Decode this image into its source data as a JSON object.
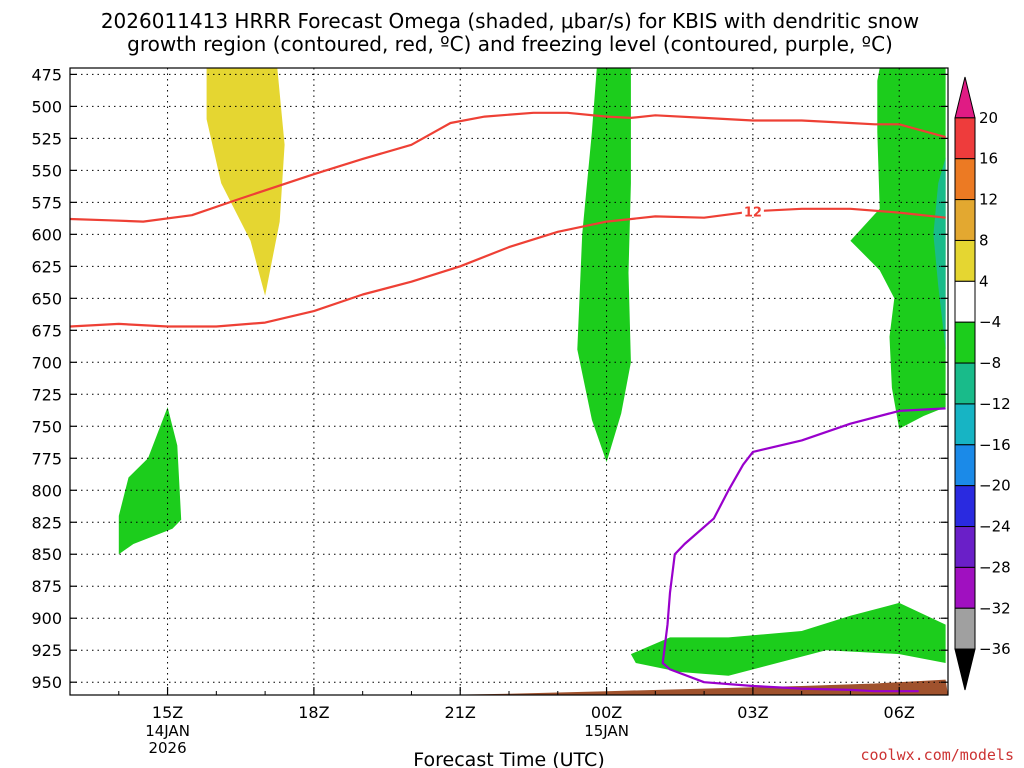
{
  "title": {
    "line1": "2026011413 HRRR Forecast Omega (shaded, μbar/s) for KBIS with dendritic snow",
    "line2": "growth region (contoured, red, ºC) and freezing level (contoured, purple, ºC)"
  },
  "credit": "coolwx.com/models",
  "colors": {
    "dgz_contour": "#ee4035",
    "freezing_contour": "#9900cc",
    "ground": "#a0522d",
    "credit": "#cc3333"
  },
  "chart_data": {
    "type": "time-height cross section",
    "xlabel": "Forecast Time (UTC)",
    "ylabel": "",
    "x_units": "forecast hours from 2026-01-14 13Z",
    "xlim": [
      0,
      18
    ],
    "ylim": [
      960,
      470
    ],
    "y_scale": "pressure (hPa), reversed",
    "grid": true,
    "x_ticks": [
      {
        "x": 2,
        "label": "15Z",
        "sub1": "14JAN",
        "sub2": "2026"
      },
      {
        "x": 5,
        "label": "18Z",
        "sub1": "",
        "sub2": ""
      },
      {
        "x": 8,
        "label": "21Z",
        "sub1": "",
        "sub2": ""
      },
      {
        "x": 11,
        "label": "00Z",
        "sub1": "15JAN",
        "sub2": ""
      },
      {
        "x": 14,
        "label": "03Z",
        "sub1": "",
        "sub2": ""
      },
      {
        "x": 17,
        "label": "06Z",
        "sub1": "",
        "sub2": ""
      }
    ],
    "y_ticks": [
      {
        "p": 475,
        "label": "475"
      },
      {
        "p": 500,
        "label": "500"
      },
      {
        "p": 525,
        "label": "525"
      },
      {
        "p": 550,
        "label": "550"
      },
      {
        "p": 575,
        "label": "575"
      },
      {
        "p": 600,
        "label": "600"
      },
      {
        "p": 625,
        "label": "625"
      },
      {
        "p": 650,
        "label": "650"
      },
      {
        "p": 675,
        "label": "675"
      },
      {
        "p": 700,
        "label": "700"
      },
      {
        "p": 725,
        "label": "725"
      },
      {
        "p": 750,
        "label": "750"
      },
      {
        "p": 775,
        "label": "775"
      },
      {
        "p": 800,
        "label": "800"
      },
      {
        "p": 825,
        "label": "825"
      },
      {
        "p": 850,
        "label": "850"
      },
      {
        "p": 875,
        "label": "875"
      },
      {
        "p": 900,
        "label": "900"
      },
      {
        "p": 925,
        "label": "925"
      },
      {
        "p": 950,
        "label": "950"
      }
    ],
    "colorbar": {
      "name": "Omega (μbar/s)",
      "bands": [
        {
          "from": 20,
          "to": null,
          "color": "#e01b84"
        },
        {
          "from": 16,
          "to": 20,
          "color": "#ee3c3c"
        },
        {
          "from": 12,
          "to": 16,
          "color": "#ec7a23"
        },
        {
          "from": 8,
          "to": 12,
          "color": "#e3a830"
        },
        {
          "from": 4,
          "to": 8,
          "color": "#e5d631"
        },
        {
          "from": -4,
          "to": 4,
          "color": "#ffffff"
        },
        {
          "from": -8,
          "to": -4,
          "color": "#1ccd1c"
        },
        {
          "from": -12,
          "to": -8,
          "color": "#19bb8a"
        },
        {
          "from": -16,
          "to": -12,
          "color": "#17b4c4"
        },
        {
          "from": -20,
          "to": -16,
          "color": "#1b8ae8"
        },
        {
          "from": -24,
          "to": -20,
          "color": "#2a2ae0"
        },
        {
          "from": -28,
          "to": -24,
          "color": "#6a1fc8"
        },
        {
          "from": -32,
          "to": -28,
          "color": "#a010c0"
        },
        {
          "from": -36,
          "to": -32,
          "color": "#a0a0a0"
        },
        {
          "from": null,
          "to": -36,
          "color": "#000000"
        }
      ],
      "tick_labels": [
        "20",
        "16",
        "12",
        "8",
        "4",
        "−4",
        "−8",
        "−12",
        "−16",
        "−20",
        "−24",
        "−28",
        "−32",
        "−36"
      ]
    },
    "shaded_regions": [
      {
        "name": "upward-motion-15z",
        "level": "-4 to -8",
        "color": "#1ccd1c",
        "points": [
          [
            1.0,
            850
          ],
          [
            1.3,
            842
          ],
          [
            2.1,
            830
          ],
          [
            2.28,
            823
          ],
          [
            2.2,
            765
          ],
          [
            2.0,
            735
          ],
          [
            1.6,
            775
          ],
          [
            1.2,
            790
          ],
          [
            1.0,
            820
          ]
        ]
      },
      {
        "name": "sinking-motion-17z",
        "level": "4 to 8",
        "color": "#e5d631",
        "points": [
          [
            2.8,
            470
          ],
          [
            4.25,
            470
          ],
          [
            4.4,
            530
          ],
          [
            4.3,
            590
          ],
          [
            4.0,
            648
          ],
          [
            3.7,
            605
          ],
          [
            3.1,
            560
          ],
          [
            2.8,
            510
          ]
        ]
      },
      {
        "name": "upward-motion-00z",
        "level": "-4 to -8",
        "color": "#1ccd1c",
        "points": [
          [
            10.8,
            470
          ],
          [
            11.5,
            470
          ],
          [
            11.5,
            560
          ],
          [
            11.45,
            630
          ],
          [
            11.5,
            700
          ],
          [
            11.3,
            740
          ],
          [
            11.0,
            778
          ],
          [
            10.7,
            745
          ],
          [
            10.4,
            690
          ],
          [
            10.5,
            600
          ],
          [
            10.7,
            520
          ]
        ]
      },
      {
        "name": "upward-motion-06z",
        "level": "-4 to -8",
        "color": "#1ccd1c",
        "points": [
          [
            16.6,
            470
          ],
          [
            17.95,
            470
          ],
          [
            17.95,
            735
          ],
          [
            17.5,
            742
          ],
          [
            17.0,
            752
          ],
          [
            16.85,
            720
          ],
          [
            16.8,
            680
          ],
          [
            16.9,
            650
          ],
          [
            16.6,
            628
          ],
          [
            16.0,
            605
          ],
          [
            16.6,
            580
          ],
          [
            16.55,
            520
          ],
          [
            16.55,
            480
          ]
        ]
      },
      {
        "name": "stronger-upward-06z",
        "level": "-8 to -12",
        "color": "#19bb8a",
        "points": [
          [
            17.95,
            540
          ],
          [
            17.8,
            560
          ],
          [
            17.7,
            600
          ],
          [
            17.8,
            640
          ],
          [
            17.95,
            690
          ]
        ]
      },
      {
        "name": "low-level-upward-band",
        "level": "-4 to -8",
        "color": "#1ccd1c",
        "points": [
          [
            11.5,
            928
          ],
          [
            12.3,
            915
          ],
          [
            13.5,
            915
          ],
          [
            15.0,
            910
          ],
          [
            16.0,
            898
          ],
          [
            17.0,
            888
          ],
          [
            17.95,
            905
          ],
          [
            17.95,
            935
          ],
          [
            17.0,
            928
          ],
          [
            15.5,
            925
          ],
          [
            14.5,
            935
          ],
          [
            13.5,
            945
          ],
          [
            12.5,
            942
          ],
          [
            11.6,
            935
          ]
        ]
      }
    ],
    "contours": [
      {
        "name": "dgz-upper",
        "group": "dendritic snow growth region (red)",
        "label": "",
        "color": "#ee4035",
        "points": [
          [
            0,
            588
          ],
          [
            0.8,
            589
          ],
          [
            1.5,
            590
          ],
          [
            2.5,
            585
          ],
          [
            3.5,
            572
          ],
          [
            5.0,
            553
          ],
          [
            6.0,
            541
          ],
          [
            7.0,
            530
          ],
          [
            7.8,
            513
          ],
          [
            8.5,
            508
          ],
          [
            9.5,
            505
          ],
          [
            10.2,
            505
          ],
          [
            11.0,
            508
          ],
          [
            11.5,
            509
          ],
          [
            12.0,
            507
          ],
          [
            13.0,
            509
          ],
          [
            14.0,
            511
          ],
          [
            15.0,
            511
          ],
          [
            16.0,
            513
          ],
          [
            16.5,
            514
          ],
          [
            17.0,
            514
          ],
          [
            17.95,
            524
          ]
        ]
      },
      {
        "name": "dgz-lower",
        "group": "dendritic snow growth region (red)",
        "label": "12",
        "color": "#ee4035",
        "points": [
          [
            0,
            672
          ],
          [
            1.0,
            670
          ],
          [
            2.0,
            672
          ],
          [
            3.0,
            672
          ],
          [
            4.0,
            669
          ],
          [
            5.0,
            660
          ],
          [
            6.0,
            647
          ],
          [
            7.0,
            637
          ],
          [
            8.0,
            625
          ],
          [
            9.0,
            610
          ],
          [
            10.0,
            598
          ],
          [
            11.0,
            590
          ],
          [
            12.0,
            586
          ],
          [
            13.0,
            587
          ],
          [
            14.0,
            582
          ],
          [
            15.0,
            580
          ],
          [
            16.0,
            580
          ],
          [
            17.0,
            583
          ],
          [
            17.95,
            587
          ]
        ]
      },
      {
        "name": "freezing-level",
        "group": "freezing level (purple)",
        "label": "",
        "color": "#9900cc",
        "points": [
          [
            17.95,
            736
          ],
          [
            17.0,
            738
          ],
          [
            16.0,
            748
          ],
          [
            15.0,
            761
          ],
          [
            14.0,
            770
          ],
          [
            13.8,
            780
          ],
          [
            13.5,
            800
          ],
          [
            13.2,
            822
          ],
          [
            12.6,
            842
          ],
          [
            12.4,
            850
          ],
          [
            12.3,
            880
          ],
          [
            12.25,
            905
          ],
          [
            12.15,
            935
          ],
          [
            12.3,
            940
          ],
          [
            13.0,
            950
          ],
          [
            14.0,
            953
          ],
          [
            15.0,
            955
          ],
          [
            16.0,
            956
          ],
          [
            16.5,
            957
          ],
          [
            17.0,
            957
          ],
          [
            17.4,
            957
          ]
        ]
      }
    ],
    "terrain": {
      "name": "ground",
      "color": "#a0522d",
      "top_pressure": [
        [
          0,
          964
        ],
        [
          3,
          963
        ],
        [
          6,
          961
        ],
        [
          9,
          959
        ],
        [
          11,
          957
        ],
        [
          13,
          955
        ],
        [
          15,
          953
        ],
        [
          16.5,
          951
        ],
        [
          17.95,
          948
        ]
      ]
    }
  }
}
